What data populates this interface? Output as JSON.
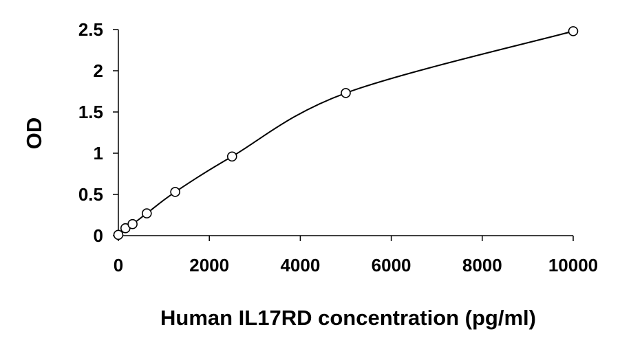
{
  "chart_data": {
    "type": "scatter",
    "title": "",
    "xlabel": "Human IL17RD concentration (pg/ml)",
    "ylabel": "OD",
    "xlim": [
      0,
      10000
    ],
    "ylim": [
      0,
      2.5
    ],
    "xticks": [
      0,
      2000,
      4000,
      6000,
      8000,
      10000
    ],
    "yticks": [
      0,
      0.5,
      1,
      1.5,
      2,
      2.5
    ],
    "xtick_labels": [
      "0",
      "2000",
      "4000",
      "6000",
      "8000",
      "10000"
    ],
    "ytick_labels": [
      "0",
      "0.5",
      "1",
      "1.5",
      "2",
      "2.5"
    ],
    "grid": false,
    "legend": "none",
    "marker": "open-circle",
    "fit_line": "smooth-curve",
    "series": [
      {
        "x": [
          0,
          156,
          312,
          625,
          1250,
          2500,
          5000,
          10000
        ],
        "y": [
          0.01,
          0.09,
          0.14,
          0.27,
          0.53,
          0.96,
          1.73,
          2.48
        ]
      }
    ],
    "colors": {
      "axis": "#000000",
      "marker": "#000000",
      "line": "#000000"
    }
  }
}
